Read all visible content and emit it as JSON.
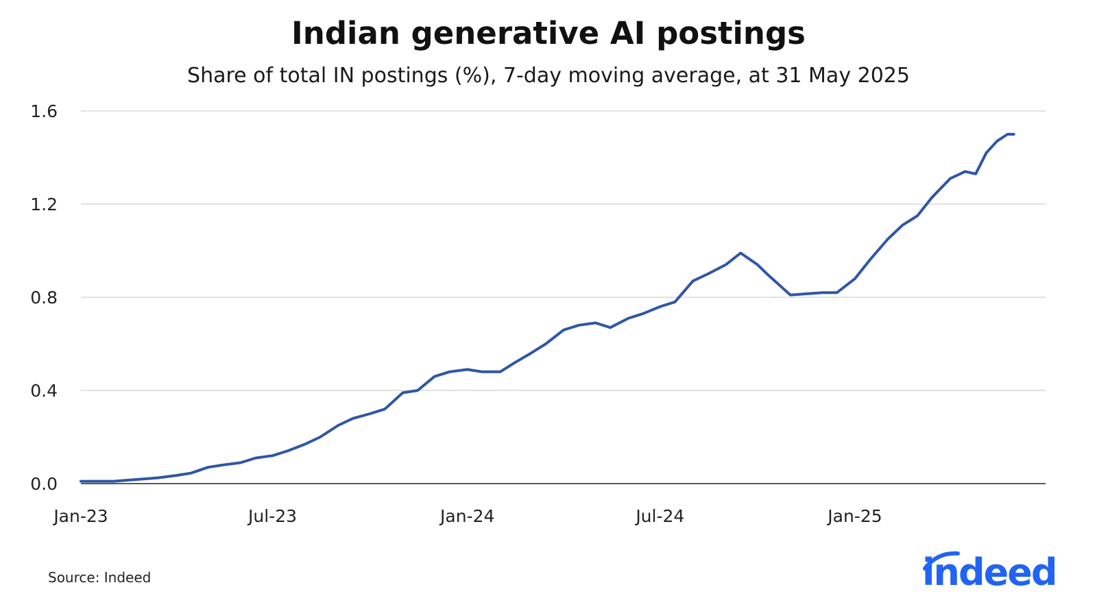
{
  "title": "Indian generative AI postings",
  "subtitle": "Share of total IN postings (%), 7-day moving average, at 31 May 2025",
  "source": "Source: Indeed",
  "logo_text": "indeed",
  "colors": {
    "line": "#2f56a6",
    "grid": "#d9d9d9",
    "axis": "#222222",
    "logo": "#2164f3"
  },
  "chart_data": {
    "type": "line",
    "title": "Indian generative AI postings",
    "subtitle": "Share of total IN postings (%), 7-day moving average, at 31 May 2025",
    "xlabel": "",
    "ylabel": "",
    "ylim": [
      0,
      1.6
    ],
    "yticks": [
      "0.0",
      "0.4",
      "0.8",
      "1.2",
      "1.6"
    ],
    "ytick_values": [
      0,
      0.4,
      0.8,
      1.2,
      1.6
    ],
    "xlim": [
      "2023-01-01",
      "2025-06-30"
    ],
    "xticks": [
      {
        "label": "Jan-23",
        "date": "2023-01-01"
      },
      {
        "label": "Jul-23",
        "date": "2023-07-01"
      },
      {
        "label": "Jan-24",
        "date": "2024-01-01"
      },
      {
        "label": "Jul-24",
        "date": "2024-07-01"
      },
      {
        "label": "Jan-25",
        "date": "2025-01-01"
      }
    ],
    "grid": true,
    "legend": "none",
    "series": [
      {
        "x": [
          "2023-01-01",
          "2023-01-15",
          "2023-02-01",
          "2023-02-15",
          "2023-03-01",
          "2023-03-15",
          "2023-04-01",
          "2023-04-15",
          "2023-05-01",
          "2023-05-15",
          "2023-06-01",
          "2023-06-15",
          "2023-07-01",
          "2023-07-15",
          "2023-08-01",
          "2023-08-15",
          "2023-09-01",
          "2023-09-15",
          "2023-10-01",
          "2023-10-15",
          "2023-11-01",
          "2023-11-15",
          "2023-12-01",
          "2023-12-15",
          "2024-01-01",
          "2024-01-15",
          "2024-02-01",
          "2024-02-15",
          "2024-03-01",
          "2024-03-15",
          "2024-04-01",
          "2024-04-15",
          "2024-05-01",
          "2024-05-15",
          "2024-06-01",
          "2024-06-15",
          "2024-07-01",
          "2024-07-15",
          "2024-08-01",
          "2024-08-15",
          "2024-09-01",
          "2024-09-15",
          "2024-10-01",
          "2024-10-10",
          "2024-11-01",
          "2024-12-01",
          "2024-12-15",
          "2025-01-01",
          "2025-01-15",
          "2025-02-01",
          "2025-02-15",
          "2025-03-01",
          "2025-03-15",
          "2025-04-01",
          "2025-04-15",
          "2025-04-25",
          "2025-05-05",
          "2025-05-15",
          "2025-05-25",
          "2025-05-31"
        ],
        "values": [
          0.01,
          0.01,
          0.01,
          0.015,
          0.02,
          0.025,
          0.035,
          0.045,
          0.07,
          0.08,
          0.09,
          0.11,
          0.12,
          0.14,
          0.17,
          0.2,
          0.25,
          0.28,
          0.3,
          0.32,
          0.39,
          0.4,
          0.46,
          0.48,
          0.49,
          0.48,
          0.48,
          0.52,
          0.56,
          0.6,
          0.66,
          0.68,
          0.69,
          0.67,
          0.71,
          0.73,
          0.76,
          0.78,
          0.87,
          0.9,
          0.94,
          0.99,
          0.94,
          0.9,
          0.81,
          0.82,
          0.82,
          0.88,
          0.96,
          1.05,
          1.11,
          1.15,
          1.23,
          1.31,
          1.34,
          1.33,
          1.42,
          1.47,
          1.5,
          1.5
        ]
      }
    ]
  }
}
